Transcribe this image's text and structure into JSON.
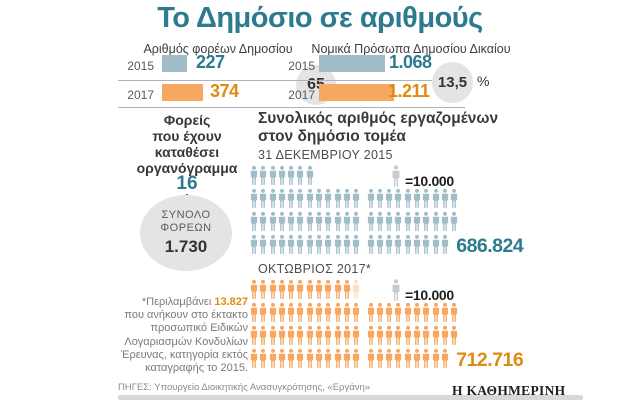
{
  "title": "Το Δημόσιο σε αριθμούς",
  "colors": {
    "teal": "#2e7a8f",
    "blue": "#a2bdca",
    "orange": "#f7a75f",
    "orange_text": "#de8b13",
    "legend_gray": "#c7ccd0",
    "circle_gray": "#e4e4e4"
  },
  "main_section": {
    "title_lines": [
      "Συνολικός αριθμός εργαζομένων",
      "στον δημόσιο τομέα"
    ]
  },
  "chart_data": [
    {
      "type": "bar",
      "title": "Αριθμός φορέων Δημοσίου",
      "categories": [
        "2015",
        "2017"
      ],
      "values": [
        227,
        374
      ],
      "value_labels": [
        "227",
        "374"
      ],
      "change": {
        "value": "65",
        "unit": "%"
      }
    },
    {
      "type": "bar",
      "title": "Νομικά Πρόσωπα Δημοσίου Δικαίου",
      "categories": [
        "2015",
        "2017"
      ],
      "values": [
        1068,
        1211
      ],
      "value_labels": [
        "1.068",
        "1.211"
      ],
      "change": {
        "value": "13,5",
        "unit": "%"
      }
    },
    {
      "type": "pictograph",
      "label": "31 ΔΕΚΕΜΒΡΙΟΥ 2015",
      "unit_per_icon": 10000,
      "unit_label": "=10.000",
      "total_value": 686824,
      "total_label": "686.824",
      "icon_color": "#a2bdca",
      "total_color": "#2e7a8f",
      "rows": [
        {
          "groups": [
            7
          ]
        },
        {
          "groups": [
            12,
            10
          ]
        },
        {
          "groups": [
            12,
            10
          ]
        },
        {
          "groups": [
            12,
            9
          ]
        }
      ]
    },
    {
      "type": "pictograph",
      "label": "ΟΚΤΩΒΡΙΟΣ 2017*",
      "unit_per_icon": 10000,
      "unit_label": "=10.000",
      "total_value": 712716,
      "total_label": "712.716",
      "icon_color": "#f7a75f",
      "total_color": "#de8b13",
      "rows": [
        {
          "groups": [
            11
          ],
          "faded": 1
        },
        {
          "groups": [
            12,
            10
          ]
        },
        {
          "groups": [
            12,
            10
          ]
        },
        {
          "groups": [
            12,
            9
          ]
        }
      ]
    },
    {
      "type": "kpi",
      "title_lines": [
        "Φορείς",
        "που έχουν",
        "καταθέσει",
        "οργανόγραμμα"
      ],
      "value": 16,
      "value_label": "16",
      "circle_lines": [
        "ΣΥΝΟΛΟ",
        "ΦΟΡΕΩΝ"
      ],
      "circle_value": 1730,
      "circle_value_label": "1.730"
    }
  ],
  "footnote": {
    "prefix": "*Περιλαμβάνει",
    "highlight": "13.827",
    "lines": [
      "που ανήκουν στο έκτακτο",
      "προσωπικό Ειδικών",
      "Λογαριασμών Κονδυλίων",
      "Έρευνας, κατηγορία εκτός",
      "καταγραφής το 2015."
    ]
  },
  "footer": {
    "sources": "ΠΗΓΕΣ: Υπουργείο Διοικητικής Ανασυγκρότησης, «Εργάνη»",
    "brand": "Η ΚΑΘΗΜΕΡΙΝΗ"
  }
}
